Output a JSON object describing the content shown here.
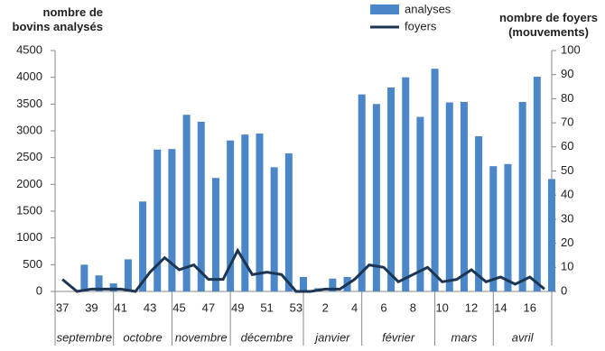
{
  "chart_data": {
    "type": "bar-line",
    "y_label": "nombre de bovins analysés",
    "y2_label": "nombre de foyers (mouvements)",
    "categories": [
      "37",
      null,
      "39",
      null,
      "41",
      null,
      "43",
      null,
      "45",
      null,
      "47",
      null,
      "49",
      null,
      "51",
      null,
      "53",
      null,
      "2",
      null,
      "4",
      null,
      "6",
      null,
      "8",
      null,
      "10",
      null,
      "12",
      null,
      "14",
      null,
      "16",
      null
    ],
    "months": [
      "septembre",
      "octobre",
      "novembre",
      "décembre",
      "janvier",
      "février",
      "mars",
      "avril"
    ],
    "series": [
      {
        "name": "analyses",
        "type": "bar",
        "color": "#4a86c8",
        "values": [
          0,
          500,
          300,
          150,
          600,
          1680,
          2650,
          2660,
          3300,
          3170,
          2120,
          2820,
          2930,
          2950,
          2320,
          2580,
          270,
          60,
          240,
          270,
          3680,
          3500,
          3810,
          4000,
          3260,
          4160,
          3530,
          3540,
          2900,
          2340,
          2380,
          3540,
          4010,
          2100
        ]
      },
      {
        "name": "foyers",
        "type": "line",
        "axis": "y2",
        "color": "#1b3553",
        "values": [
          5,
          0,
          1,
          1,
          1,
          0,
          8,
          14,
          9,
          11,
          5,
          5,
          17,
          7,
          8,
          7,
          0,
          0,
          1,
          1,
          5,
          11,
          10,
          4,
          7,
          10,
          4,
          5,
          9,
          4,
          6,
          3,
          6,
          1
        ]
      }
    ],
    "ylim": [
      0,
      4500
    ],
    "yticks": [
      0,
      500,
      1000,
      1500,
      2000,
      2500,
      3000,
      3500,
      4000,
      4500
    ],
    "y2lim": [
      0,
      100
    ],
    "y2ticks": [
      0,
      10,
      20,
      30,
      40,
      50,
      60,
      70,
      80,
      90,
      100
    ],
    "legend": "top"
  }
}
